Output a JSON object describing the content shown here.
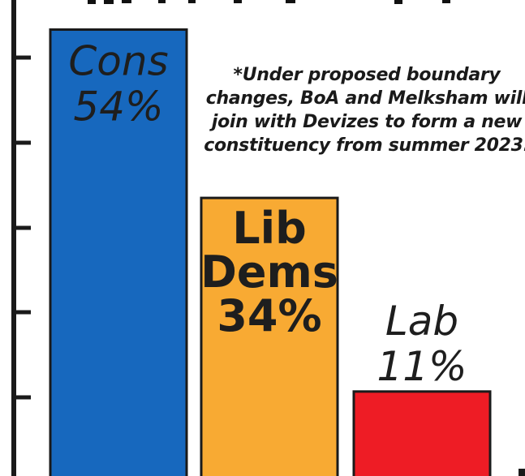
{
  "chart_data": {
    "type": "bar",
    "title": "",
    "xlabel": "",
    "ylabel": "",
    "ylim": [
      0,
      60
    ],
    "categories": [
      "Cons",
      "Lib Dems",
      "Lab"
    ],
    "values": [
      54,
      34,
      11
    ],
    "data_labels": [
      [
        "Cons",
        "54%"
      ],
      [
        "Lib",
        "Dems",
        "34%"
      ],
      [
        "Lab",
        "11%"
      ]
    ],
    "label_style": [
      "italic-inside",
      "bold-inside",
      "italic-above"
    ],
    "colors": [
      "#1768be",
      "#f8aa33",
      "#ee1c25"
    ],
    "grid": false,
    "legend": "none",
    "annotation": [
      "*Under proposed boundary",
      "changes, BoA and Melksham will",
      "join with Devizes to form a new",
      "constituency from summer 2023."
    ]
  }
}
